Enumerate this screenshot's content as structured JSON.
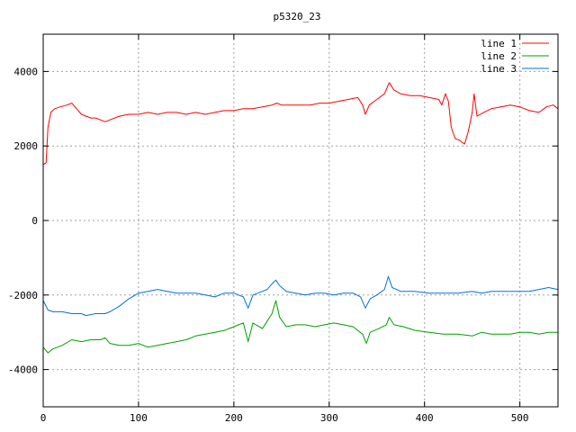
{
  "chart_data": {
    "type": "line",
    "title": "p5320_23",
    "xlabel": "",
    "ylabel": "",
    "xlim": [
      0,
      540
    ],
    "ylim": [
      -5000,
      5000
    ],
    "xticks": [
      0,
      100,
      200,
      300,
      400,
      500
    ],
    "yticks": [
      -4000,
      -2000,
      0,
      2000,
      4000
    ],
    "grid": true,
    "legend_position": "top-right",
    "series": [
      {
        "name": "line 1",
        "color": "#ff0000",
        "points": [
          [
            0,
            1500
          ],
          [
            3,
            1550
          ],
          [
            5,
            2500
          ],
          [
            8,
            2900
          ],
          [
            12,
            3000
          ],
          [
            18,
            3050
          ],
          [
            25,
            3100
          ],
          [
            30,
            3150
          ],
          [
            35,
            3000
          ],
          [
            40,
            2850
          ],
          [
            45,
            2800
          ],
          [
            50,
            2750
          ],
          [
            55,
            2750
          ],
          [
            60,
            2700
          ],
          [
            65,
            2650
          ],
          [
            70,
            2700
          ],
          [
            80,
            2800
          ],
          [
            90,
            2850
          ],
          [
            100,
            2850
          ],
          [
            110,
            2900
          ],
          [
            120,
            2850
          ],
          [
            130,
            2900
          ],
          [
            140,
            2900
          ],
          [
            150,
            2850
          ],
          [
            160,
            2900
          ],
          [
            170,
            2850
          ],
          [
            180,
            2900
          ],
          [
            190,
            2950
          ],
          [
            200,
            2950
          ],
          [
            210,
            3000
          ],
          [
            220,
            3000
          ],
          [
            230,
            3050
          ],
          [
            240,
            3100
          ],
          [
            245,
            3150
          ],
          [
            250,
            3100
          ],
          [
            260,
            3100
          ],
          [
            270,
            3100
          ],
          [
            280,
            3100
          ],
          [
            290,
            3150
          ],
          [
            300,
            3150
          ],
          [
            310,
            3200
          ],
          [
            320,
            3250
          ],
          [
            330,
            3300
          ],
          [
            335,
            3100
          ],
          [
            338,
            2850
          ],
          [
            342,
            3100
          ],
          [
            350,
            3250
          ],
          [
            358,
            3400
          ],
          [
            363,
            3700
          ],
          [
            368,
            3500
          ],
          [
            375,
            3400
          ],
          [
            385,
            3350
          ],
          [
            395,
            3350
          ],
          [
            405,
            3300
          ],
          [
            415,
            3250
          ],
          [
            418,
            3100
          ],
          [
            422,
            3400
          ],
          [
            425,
            3200
          ],
          [
            428,
            2500
          ],
          [
            432,
            2200
          ],
          [
            437,
            2150
          ],
          [
            442,
            2050
          ],
          [
            446,
            2400
          ],
          [
            450,
            2900
          ],
          [
            452,
            3400
          ],
          [
            455,
            2800
          ],
          [
            462,
            2900
          ],
          [
            470,
            3000
          ],
          [
            480,
            3050
          ],
          [
            490,
            3100
          ],
          [
            500,
            3050
          ],
          [
            510,
            2950
          ],
          [
            520,
            2900
          ],
          [
            528,
            3050
          ],
          [
            535,
            3100
          ],
          [
            540,
            3000
          ]
        ]
      },
      {
        "name": "line 2",
        "color": "#00a000",
        "points": [
          [
            0,
            -3400
          ],
          [
            5,
            -3550
          ],
          [
            10,
            -3450
          ],
          [
            20,
            -3350
          ],
          [
            30,
            -3200
          ],
          [
            40,
            -3250
          ],
          [
            50,
            -3200
          ],
          [
            60,
            -3200
          ],
          [
            65,
            -3150
          ],
          [
            70,
            -3300
          ],
          [
            80,
            -3350
          ],
          [
            90,
            -3350
          ],
          [
            100,
            -3300
          ],
          [
            110,
            -3400
          ],
          [
            120,
            -3350
          ],
          [
            130,
            -3300
          ],
          [
            140,
            -3250
          ],
          [
            150,
            -3200
          ],
          [
            160,
            -3100
          ],
          [
            170,
            -3050
          ],
          [
            180,
            -3000
          ],
          [
            190,
            -2950
          ],
          [
            200,
            -2850
          ],
          [
            205,
            -2800
          ],
          [
            210,
            -2750
          ],
          [
            215,
            -3250
          ],
          [
            220,
            -2750
          ],
          [
            230,
            -2900
          ],
          [
            235,
            -2700
          ],
          [
            240,
            -2500
          ],
          [
            244,
            -2150
          ],
          [
            248,
            -2600
          ],
          [
            255,
            -2850
          ],
          [
            265,
            -2800
          ],
          [
            275,
            -2800
          ],
          [
            285,
            -2850
          ],
          [
            295,
            -2800
          ],
          [
            305,
            -2750
          ],
          [
            315,
            -2800
          ],
          [
            325,
            -2850
          ],
          [
            335,
            -3050
          ],
          [
            339,
            -3300
          ],
          [
            343,
            -3000
          ],
          [
            352,
            -2900
          ],
          [
            360,
            -2800
          ],
          [
            363,
            -2600
          ],
          [
            368,
            -2800
          ],
          [
            378,
            -2850
          ],
          [
            390,
            -2950
          ],
          [
            405,
            -3000
          ],
          [
            420,
            -3050
          ],
          [
            435,
            -3050
          ],
          [
            450,
            -3100
          ],
          [
            460,
            -3000
          ],
          [
            470,
            -3050
          ],
          [
            480,
            -3050
          ],
          [
            490,
            -3050
          ],
          [
            500,
            -3000
          ],
          [
            510,
            -3000
          ],
          [
            520,
            -3050
          ],
          [
            530,
            -3000
          ],
          [
            540,
            -3000
          ]
        ]
      },
      {
        "name": "line 3",
        "color": "#0070e0",
        "points": [
          [
            0,
            -2150
          ],
          [
            5,
            -2400
          ],
          [
            10,
            -2450
          ],
          [
            20,
            -2450
          ],
          [
            30,
            -2500
          ],
          [
            40,
            -2500
          ],
          [
            45,
            -2550
          ],
          [
            55,
            -2500
          ],
          [
            65,
            -2500
          ],
          [
            70,
            -2450
          ],
          [
            80,
            -2300
          ],
          [
            90,
            -2100
          ],
          [
            100,
            -1950
          ],
          [
            110,
            -1900
          ],
          [
            120,
            -1850
          ],
          [
            130,
            -1900
          ],
          [
            140,
            -1950
          ],
          [
            150,
            -1950
          ],
          [
            160,
            -1950
          ],
          [
            170,
            -2000
          ],
          [
            180,
            -2050
          ],
          [
            190,
            -1950
          ],
          [
            200,
            -1950
          ],
          [
            205,
            -2000
          ],
          [
            210,
            -2050
          ],
          [
            215,
            -2350
          ],
          [
            220,
            -2000
          ],
          [
            230,
            -1900
          ],
          [
            235,
            -1850
          ],
          [
            240,
            -1700
          ],
          [
            244,
            -1600
          ],
          [
            248,
            -1750
          ],
          [
            255,
            -1900
          ],
          [
            265,
            -1950
          ],
          [
            275,
            -2000
          ],
          [
            285,
            -1950
          ],
          [
            295,
            -1950
          ],
          [
            305,
            -2000
          ],
          [
            315,
            -1950
          ],
          [
            325,
            -1950
          ],
          [
            333,
            -2050
          ],
          [
            338,
            -2350
          ],
          [
            343,
            -2100
          ],
          [
            350,
            -2000
          ],
          [
            358,
            -1850
          ],
          [
            362,
            -1500
          ],
          [
            366,
            -1800
          ],
          [
            375,
            -1900
          ],
          [
            390,
            -1900
          ],
          [
            405,
            -1950
          ],
          [
            420,
            -1950
          ],
          [
            435,
            -1950
          ],
          [
            450,
            -1900
          ],
          [
            460,
            -1950
          ],
          [
            470,
            -1900
          ],
          [
            480,
            -1900
          ],
          [
            490,
            -1900
          ],
          [
            500,
            -1900
          ],
          [
            510,
            -1900
          ],
          [
            520,
            -1850
          ],
          [
            530,
            -1800
          ],
          [
            540,
            -1850
          ]
        ]
      }
    ]
  }
}
